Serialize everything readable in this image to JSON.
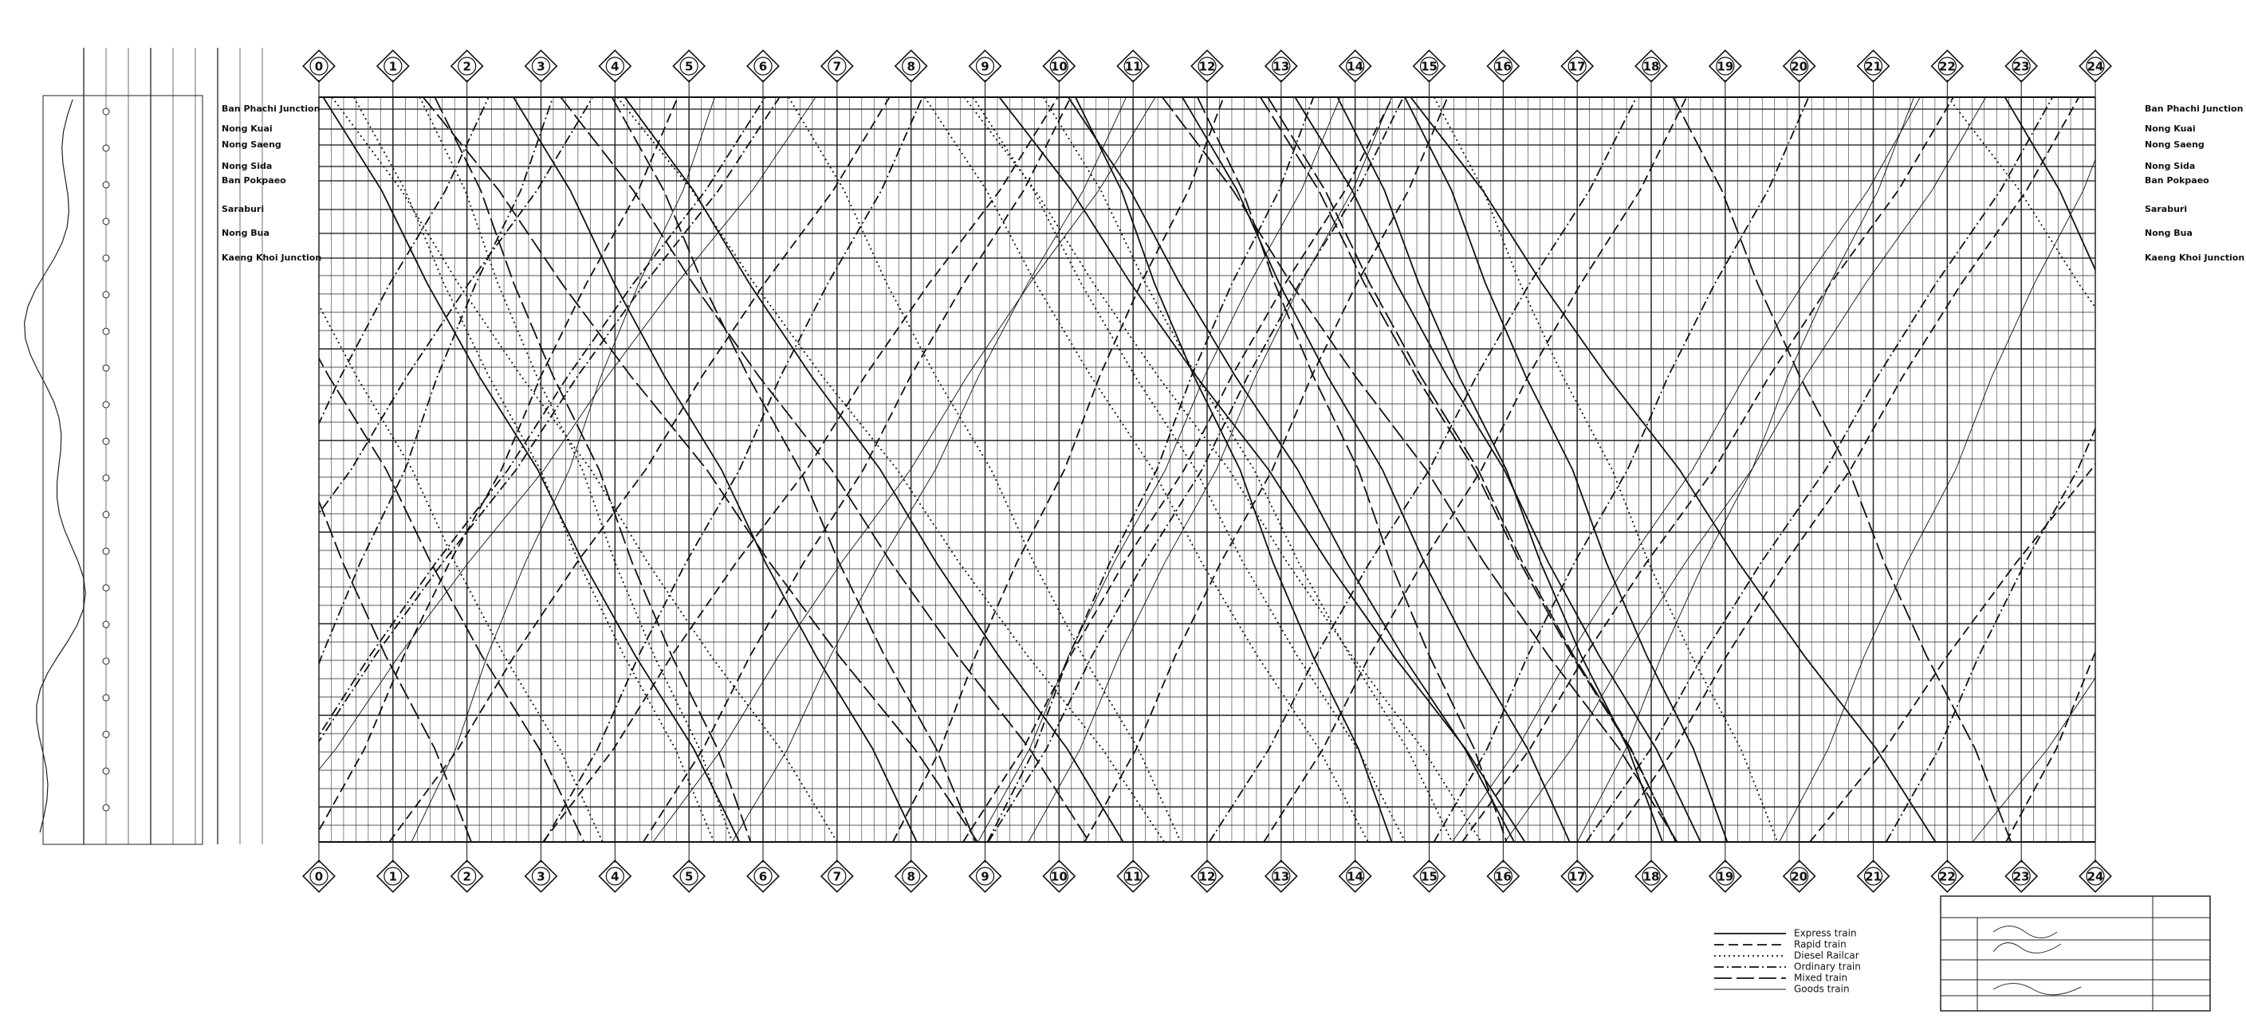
{
  "hours": [
    0,
    1,
    2,
    3,
    4,
    5,
    6,
    7,
    8,
    9,
    10,
    11,
    12,
    13,
    14,
    15,
    16,
    17,
    18,
    19,
    20,
    21,
    22,
    23,
    24
  ],
  "stations": [
    "Ban Phachi Junction",
    "Nong Kuai",
    "Nong Saeng",
    "Nong Sida",
    "Ban Pokpaeo",
    "Saraburi",
    "Nong Bua",
    "Kaeng Khoi Junction"
  ],
  "legend": [
    {
      "label": "Express train",
      "style": "solid"
    },
    {
      "label": "Rapid train",
      "style": "dashed"
    },
    {
      "label": "Diesel Railcar",
      "style": "dotted"
    },
    {
      "label": "Ordinary train",
      "style": "dashdot"
    },
    {
      "label": "Mixed train",
      "style": "longdash"
    },
    {
      "label": "Goods train",
      "style": "thin"
    }
  ]
}
